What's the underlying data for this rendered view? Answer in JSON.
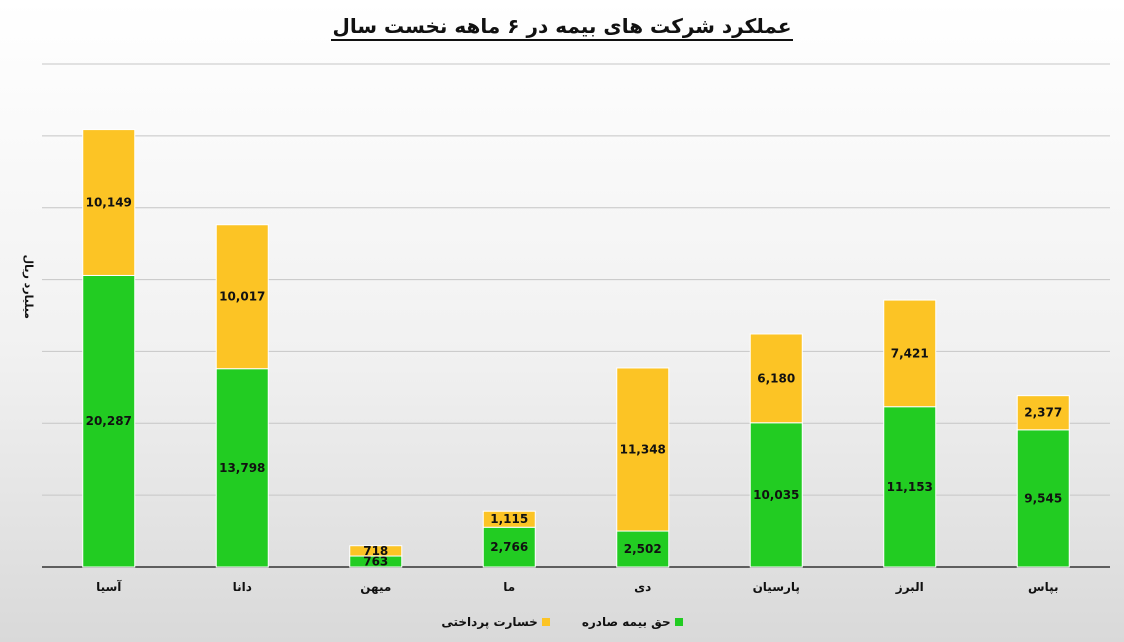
{
  "chart_data": {
    "type": "bar",
    "stacked": true,
    "title": "عملکرد شرکت های بیمه در ۶ ماهه نخست سال",
    "ylabel": "میلیارد ریال",
    "xlabel": "",
    "categories": [
      "آسیا",
      "دانا",
      "میهن",
      "ما",
      "دی",
      "پارسیان",
      "البرز",
      "بپاس"
    ],
    "series": [
      {
        "name": "حق بیمه صادره",
        "color": "#22cc22",
        "values": [
          20287,
          13798,
          763,
          2766,
          2502,
          10035,
          11153,
          9545
        ],
        "labels": [
          "20,287",
          "13,798",
          "763",
          "2,766",
          "2,502",
          "10,035",
          "11,153",
          "9,545"
        ]
      },
      {
        "name": "خسارت پرداختی",
        "color": "#fcc425",
        "values": [
          10149,
          10017,
          718,
          1115,
          11348,
          6180,
          7421,
          2377
        ],
        "labels": [
          "10,149",
          "10,017",
          "718",
          "1,115",
          "11,348",
          "6,180",
          "7,421",
          "2,377"
        ]
      }
    ],
    "ylim": [
      0,
      35000
    ],
    "grid": true,
    "y_ticks_shown": false,
    "legend_position": "bottom"
  }
}
